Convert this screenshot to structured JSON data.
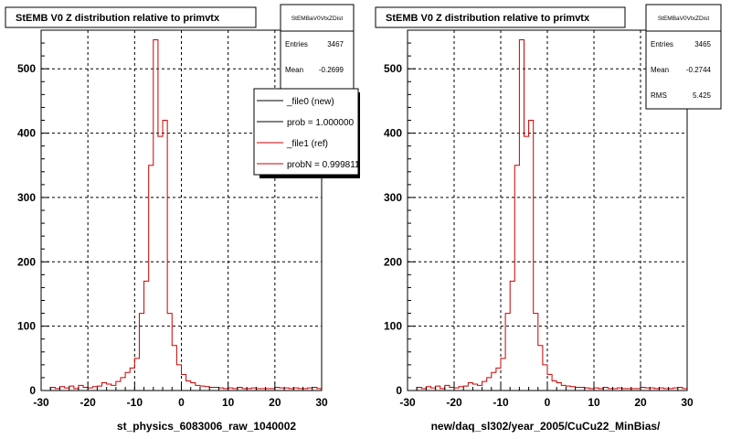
{
  "chart_data": [
    {
      "type": "bar",
      "title": "StEMB V0 Z distribution relative to primvtx",
      "xlabel": "st_physics_6083006_raw_1040002",
      "ylabel": "",
      "xlim": [
        -30,
        30
      ],
      "ylim": [
        0,
        560
      ],
      "grid": true,
      "x_ticks": [
        "-30",
        "-20",
        "-10",
        "0",
        "10",
        "20",
        "30"
      ],
      "y_ticks": [
        "0",
        "100",
        "200",
        "300",
        "400",
        "500"
      ],
      "bin_edges_start": -28,
      "bin_width": 1,
      "series": [
        {
          "name": "_file1 (ref)",
          "color": "#cc0000",
          "values": [
            5,
            3,
            6,
            4,
            7,
            3,
            8,
            5,
            4,
            6,
            7,
            12,
            10,
            8,
            14,
            20,
            28,
            35,
            50,
            120,
            170,
            350,
            545,
            395,
            420,
            120,
            70,
            40,
            25,
            15,
            12,
            8,
            7,
            6,
            5,
            5,
            4,
            3,
            4,
            3,
            5,
            3,
            3,
            4,
            3,
            3,
            3,
            3,
            5,
            4,
            4,
            3,
            4,
            3,
            3,
            4,
            5,
            3
          ]
        }
      ],
      "stats": {
        "box_title": "StEMBaV0VtxZDist",
        "entries_label": "Entries",
        "entries": "3467",
        "mean_label": "Mean",
        "mean": "-0.2699"
      },
      "legend": {
        "placement": "top-right",
        "entries": [
          {
            "label": "_file0 (new)",
            "color": "#000000"
          },
          {
            "label": "prob = 1.000000",
            "color": "#000000"
          },
          {
            "label": "_file1 (ref)",
            "color": "#cc0000"
          },
          {
            "label": "probN = 0.999811",
            "color": "#cc0000"
          }
        ]
      }
    },
    {
      "type": "bar",
      "title": "StEMB V0 Z distribution relative to primvtx",
      "xlabel": "new/daq_sl302/year_2005/CuCu22_MinBias/",
      "ylabel": "",
      "xlim": [
        -30,
        30
      ],
      "ylim": [
        0,
        560
      ],
      "grid": true,
      "x_ticks": [
        "-30",
        "-20",
        "-10",
        "0",
        "10",
        "20",
        "30"
      ],
      "y_ticks": [
        "0",
        "100",
        "200",
        "300",
        "400",
        "500"
      ],
      "bin_edges_start": -28,
      "bin_width": 1,
      "series": [
        {
          "name": "",
          "color": "#cc0000",
          "values": [
            5,
            3,
            6,
            4,
            7,
            3,
            8,
            5,
            4,
            6,
            7,
            12,
            10,
            8,
            14,
            20,
            28,
            35,
            50,
            120,
            170,
            350,
            545,
            395,
            420,
            120,
            70,
            40,
            25,
            15,
            12,
            8,
            7,
            6,
            5,
            5,
            4,
            3,
            4,
            3,
            5,
            3,
            3,
            4,
            3,
            3,
            3,
            3,
            5,
            4,
            4,
            3,
            4,
            3,
            3,
            4,
            5,
            3
          ]
        }
      ],
      "stats": {
        "box_title": "StEMBaV0VtxZDist",
        "entries_label": "Entries",
        "entries": "3465",
        "mean_label": "Mean",
        "mean": "-0.2744",
        "rms_label": "RMS",
        "rms": "5.425"
      }
    }
  ]
}
